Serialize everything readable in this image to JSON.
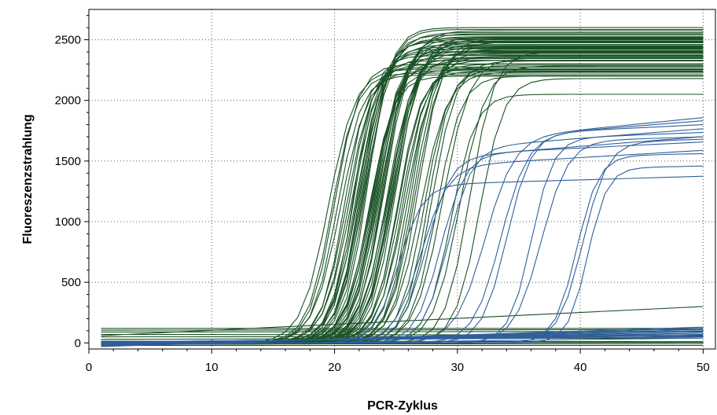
{
  "chart_data": {
    "type": "line",
    "title": "",
    "xlabel": "PCR-Zyklus",
    "ylabel": "Fluoreszenzstrahlung",
    "xlim": [
      0,
      51
    ],
    "ylim": [
      -50,
      2750
    ],
    "xticks": [
      0,
      10,
      20,
      30,
      40,
      50
    ],
    "yticks": [
      0,
      500,
      1000,
      1500,
      2000,
      2500
    ],
    "grid": "dotted",
    "legend": "none",
    "colors": {
      "green": "#1a5226",
      "blue": "#2f5f9a",
      "axis": "#000000"
    },
    "x": {
      "start": 1,
      "end": 50,
      "step": 1
    },
    "series_groups": [
      {
        "color_key": "green",
        "note_curves": "sigmoid amplification curves (baseline, plateau, midpoint cycle, slope)",
        "curves": [
          [
            0,
            2210,
            20.2,
            1.0
          ],
          [
            5,
            2240,
            20.5,
            1.1
          ],
          [
            -5,
            2280,
            20.8,
            0.95
          ],
          [
            0,
            2300,
            21.0,
            1.05
          ],
          [
            10,
            2320,
            21.2,
            1.0
          ],
          [
            0,
            2350,
            21.4,
            1.1
          ],
          [
            -10,
            2380,
            21.5,
            0.9
          ],
          [
            0,
            2400,
            21.6,
            1.0
          ],
          [
            5,
            2420,
            21.8,
            1.05
          ],
          [
            0,
            2440,
            21.9,
            1.0
          ],
          [
            0,
            2460,
            22.0,
            1.1
          ],
          [
            5,
            2480,
            22.1,
            0.95
          ],
          [
            0,
            2500,
            22.2,
            1.0
          ],
          [
            -5,
            2520,
            22.3,
            1.05
          ],
          [
            0,
            2540,
            22.4,
            1.0
          ],
          [
            0,
            2560,
            22.5,
            1.1
          ],
          [
            5,
            2580,
            22.6,
            1.0
          ],
          [
            0,
            2600,
            22.7,
            0.95
          ],
          [
            0,
            2200,
            22.8,
            1.0
          ],
          [
            5,
            2250,
            22.9,
            1.05
          ],
          [
            0,
            2300,
            23.0,
            1.0
          ],
          [
            -5,
            2350,
            23.1,
            1.1
          ],
          [
            0,
            2380,
            23.2,
            1.0
          ],
          [
            5,
            2400,
            23.3,
            0.95
          ],
          [
            0,
            2430,
            23.4,
            1.0
          ],
          [
            0,
            2450,
            23.5,
            1.05
          ],
          [
            5,
            2470,
            23.6,
            1.0
          ],
          [
            0,
            2490,
            23.7,
            1.1
          ],
          [
            0,
            2510,
            23.8,
            1.0
          ],
          [
            -5,
            2530,
            23.9,
            0.95
          ],
          [
            0,
            2550,
            24.0,
            1.0
          ],
          [
            5,
            2570,
            24.1,
            1.05
          ],
          [
            0,
            2330,
            24.2,
            1.0
          ],
          [
            0,
            2360,
            24.3,
            1.1
          ],
          [
            5,
            2390,
            24.4,
            1.0
          ],
          [
            0,
            2410,
            24.5,
            0.95
          ],
          [
            -5,
            2440,
            24.6,
            1.0
          ],
          [
            0,
            2460,
            24.7,
            1.05
          ],
          [
            0,
            2480,
            24.8,
            1.0
          ],
          [
            5,
            2500,
            24.9,
            1.1
          ],
          [
            0,
            2520,
            25.0,
            1.0
          ],
          [
            0,
            2240,
            25.1,
            0.95
          ],
          [
            5,
            2270,
            25.2,
            1.0
          ],
          [
            0,
            2300,
            25.4,
            1.05
          ],
          [
            0,
            2330,
            25.6,
            1.0
          ],
          [
            5,
            2360,
            25.8,
            1.1
          ],
          [
            0,
            2390,
            26.0,
            1.0
          ],
          [
            0,
            2420,
            26.2,
            0.95
          ],
          [
            -5,
            2450,
            26.4,
            1.0
          ],
          [
            0,
            2480,
            26.6,
            1.05
          ],
          [
            0,
            2510,
            26.8,
            1.0
          ],
          [
            5,
            2230,
            27.0,
            1.1
          ],
          [
            0,
            2260,
            27.3,
            1.0
          ],
          [
            0,
            2290,
            27.6,
            0.95
          ],
          [
            5,
            2320,
            27.9,
            1.0
          ],
          [
            0,
            2200,
            28.3,
            1.0
          ],
          [
            0,
            2350,
            28.8,
            1.1
          ],
          [
            0,
            2050,
            29.5,
            1.0
          ],
          [
            5,
            2280,
            30.2,
            1.05
          ],
          [
            0,
            2400,
            31.0,
            1.0
          ],
          [
            0,
            2180,
            31.8,
            1.0
          ],
          [
            5,
            2220,
            19.8,
            1.0
          ],
          [
            0,
            2260,
            19.5,
            1.1
          ],
          [
            0,
            2300,
            20.0,
            1.0
          ]
        ],
        "note_flat": "near-baseline curves (start value, end value)",
        "flat": [
          [
            120,
            120
          ],
          [
            105,
            110
          ],
          [
            90,
            95
          ],
          [
            70,
            65
          ],
          [
            50,
            55
          ],
          [
            30,
            40
          ],
          [
            15,
            10
          ],
          [
            0,
            5
          ],
          [
            -10,
            -5
          ],
          [
            -20,
            -20
          ],
          [
            60,
            300
          ]
        ]
      },
      {
        "color_key": "blue",
        "note_curves": "sigmoid amplification curves (baseline, plateau, midpoint cycle, slope, linear drift per cycle)",
        "curves": [
          [
            0,
            1300,
            25.2,
            1.0,
            3
          ],
          [
            0,
            1450,
            27.0,
            1.1,
            6
          ],
          [
            0,
            1520,
            27.4,
            1.0,
            8
          ],
          [
            0,
            1550,
            28.6,
            1.0,
            5
          ],
          [
            0,
            1600,
            29.2,
            1.0,
            8
          ],
          [
            0,
            1680,
            32.2,
            1.2,
            10
          ],
          [
            0,
            1700,
            33.5,
            1.1,
            8
          ],
          [
            0,
            1720,
            34.0,
            1.0,
            5
          ],
          [
            0,
            1680,
            36.0,
            0.9,
            4
          ],
          [
            0,
            1660,
            36.8,
            1.1,
            3
          ],
          [
            0,
            1540,
            39.7,
            0.9,
            2
          ],
          [
            0,
            1650,
            40.2,
            1.0,
            3
          ],
          [
            0,
            1440,
            40.6,
            0.8,
            2
          ]
        ],
        "flat": [
          [
            -30,
            130
          ],
          [
            -25,
            120
          ],
          [
            -20,
            110
          ],
          [
            -15,
            100
          ],
          [
            -10,
            90
          ],
          [
            -5,
            80
          ],
          [
            0,
            70
          ],
          [
            5,
            60
          ],
          [
            10,
            50
          ],
          [
            -20,
            40
          ]
        ]
      }
    ]
  }
}
